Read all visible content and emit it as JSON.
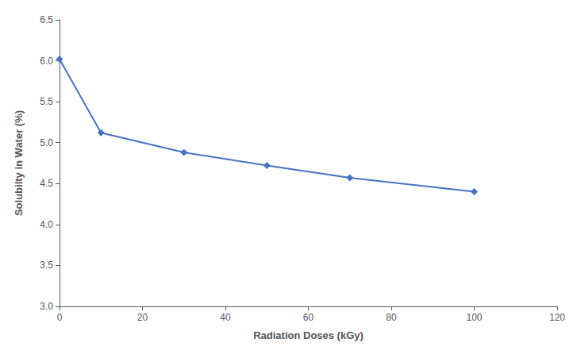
{
  "chart_data": {
    "type": "line",
    "x": [
      0,
      10,
      30,
      50,
      70,
      100
    ],
    "values": [
      6.02,
      5.12,
      4.88,
      4.72,
      4.57,
      4.4
    ],
    "color": "#4472c4",
    "marker": "diamond",
    "xlabel": "Radiation Doses (kGy)",
    "ylabel": "Solubilty in Water (%)",
    "xlim": [
      0,
      120
    ],
    "ylim": [
      3,
      6.5
    ],
    "xticks": [
      0,
      20,
      40,
      60,
      80,
      100,
      120
    ],
    "yticks": [
      {
        "value": 3,
        "label": "3.0"
      },
      3.5,
      {
        "value": 4,
        "label": "4.0"
      },
      4.5,
      {
        "value": 5,
        "label": "5.0"
      },
      5.5,
      {
        "value": 6,
        "label": "6.0"
      },
      6.5
    ],
    "grid": false
  }
}
